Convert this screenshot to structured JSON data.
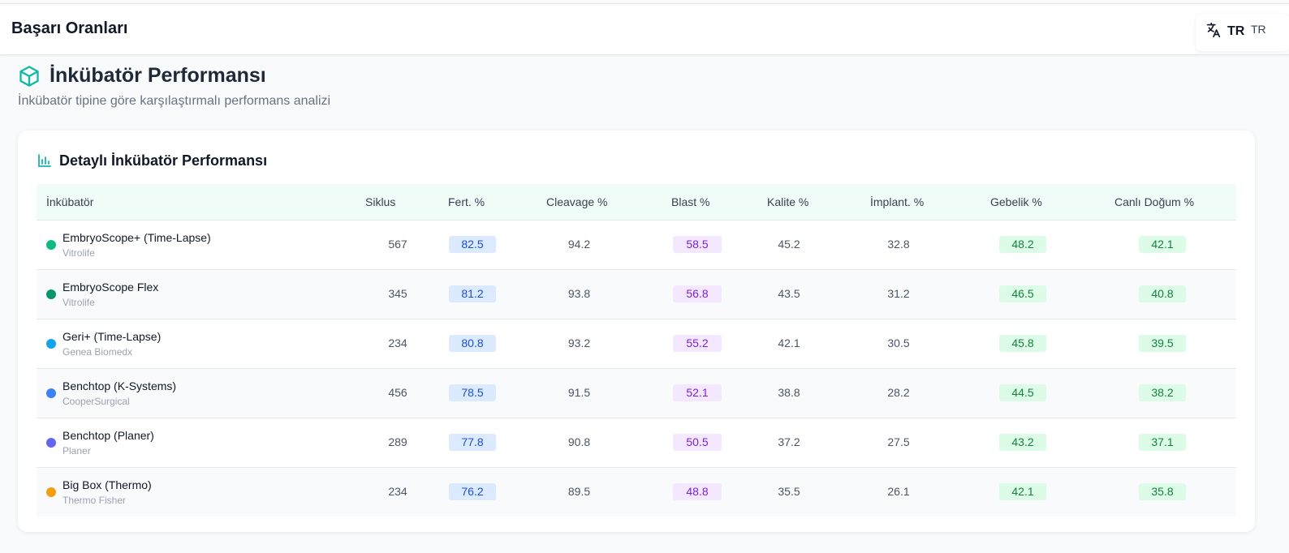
{
  "header": {
    "title": "Başarı Oranları",
    "language": {
      "code": "TR",
      "secondary_code": "TR",
      "icon": "translate-icon"
    }
  },
  "section": {
    "icon": "cube-icon",
    "title": "İnkübatör Performansı",
    "subtitle": "İnkübatör tipine göre karşılaştırmalı performans analizi"
  },
  "card": {
    "icon": "bar-chart-icon",
    "title": "Detaylı İnkübatör Performansı"
  },
  "table": {
    "headers": {
      "incubator": "İnkübatör",
      "siklus": "Siklus",
      "fert": "Fert. %",
      "cleavage": "Cleavage %",
      "blast": "Blast %",
      "kalite": "Kalite %",
      "implant": "İmplant. %",
      "gebelik": "Gebelik %",
      "canli": "Canlı Doğum %"
    },
    "rows": [
      {
        "name": "EmbryoScope+ (Time-Lapse)",
        "maker": "Vitrolife",
        "dot_color": "#10b981",
        "siklus": "567",
        "fert": "82.5",
        "cleavage": "94.2",
        "blast": "58.5",
        "kalite": "45.2",
        "implant": "32.8",
        "gebelik": "48.2",
        "canli": "42.1"
      },
      {
        "name": "EmbryoScope Flex",
        "maker": "Vitrolife",
        "dot_color": "#059669",
        "siklus": "345",
        "fert": "81.2",
        "cleavage": "93.8",
        "blast": "56.8",
        "kalite": "43.5",
        "implant": "31.2",
        "gebelik": "46.5",
        "canli": "40.8"
      },
      {
        "name": "Geri+ (Time-Lapse)",
        "maker": "Genea Biomedx",
        "dot_color": "#0ea5e9",
        "siklus": "234",
        "fert": "80.8",
        "cleavage": "93.2",
        "blast": "55.2",
        "kalite": "42.1",
        "implant": "30.5",
        "gebelik": "45.8",
        "canli": "39.5"
      },
      {
        "name": "Benchtop (K-Systems)",
        "maker": "CooperSurgical",
        "dot_color": "#3b82f6",
        "siklus": "456",
        "fert": "78.5",
        "cleavage": "91.5",
        "blast": "52.1",
        "kalite": "38.8",
        "implant": "28.2",
        "gebelik": "44.5",
        "canli": "38.2"
      },
      {
        "name": "Benchtop (Planer)",
        "maker": "Planer",
        "dot_color": "#6366f1",
        "siklus": "289",
        "fert": "77.8",
        "cleavage": "90.8",
        "blast": "50.5",
        "kalite": "37.2",
        "implant": "27.5",
        "gebelik": "43.2",
        "canli": "37.1"
      },
      {
        "name": "Big Box (Thermo)",
        "maker": "Thermo Fisher",
        "dot_color": "#f59e0b",
        "siklus": "234",
        "fert": "76.2",
        "cleavage": "89.5",
        "blast": "48.8",
        "kalite": "35.5",
        "implant": "26.1",
        "gebelik": "42.1",
        "canli": "35.8"
      }
    ]
  }
}
